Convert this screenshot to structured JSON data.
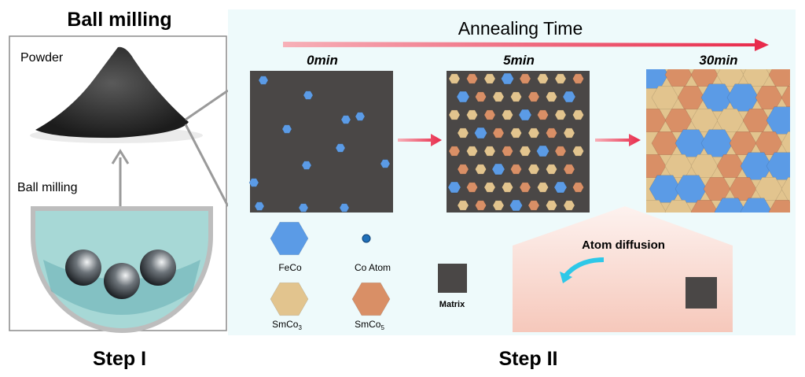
{
  "step1": {
    "title": "Ball milling",
    "powder_label": "Powder",
    "process_label": "Ball milling",
    "caption": "Step I"
  },
  "step2": {
    "axis_label": "Annealing Time",
    "stages": [
      "0min",
      "5min",
      "30min"
    ],
    "legend": {
      "feco": "FeCo",
      "co_atom": "Co Atom",
      "smco3": "SmCo",
      "smco3_sub": "3",
      "smco5": "SmCo",
      "smco5_sub": "5",
      "matrix": "Matrix"
    },
    "inset_title": "Atom diffusion",
    "caption": "Step II"
  },
  "colors": {
    "feco": "#5b9be6",
    "smco3": "#e2c48e",
    "smco5": "#d98f66",
    "matrix": "#4a4746",
    "co_atom": "#1f6fb8",
    "arrow": "#ee3e58",
    "diffusion_arrow": "#2ec8e8",
    "liquid": "#a7d8d6"
  }
}
